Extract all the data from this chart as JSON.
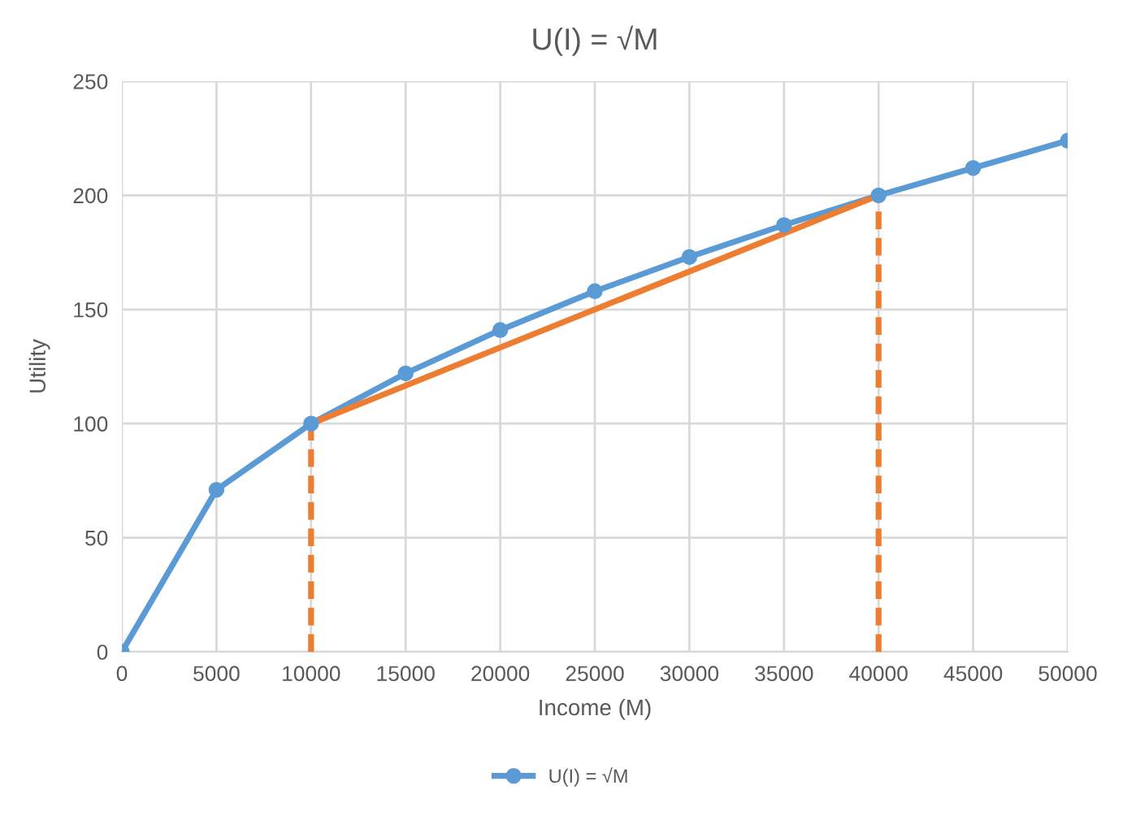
{
  "chart_data": {
    "type": "line",
    "title": "U(I) = √M",
    "xlabel": "Income (M)",
    "ylabel": "Utility",
    "xlim": [
      0,
      50000
    ],
    "xticks": [
      0,
      5000,
      10000,
      15000,
      20000,
      25000,
      30000,
      35000,
      40000,
      45000,
      50000
    ],
    "ylim": [
      0,
      250
    ],
    "yticks": [
      0,
      50,
      100,
      150,
      200,
      250
    ],
    "grid": true,
    "legend": "bottom",
    "series": [
      {
        "name": "U(I) = √M",
        "color": "#5b9bd5",
        "marker": "circle",
        "line_style": "solid",
        "x": [
          0,
          5000,
          10000,
          15000,
          20000,
          25000,
          30000,
          35000,
          40000,
          45000,
          50000
        ],
        "values": [
          0,
          71,
          100,
          122,
          141,
          158,
          173,
          187,
          200,
          212,
          224
        ]
      },
      {
        "color": "#ed7d31",
        "marker": "none",
        "line_style": "solid",
        "x": [
          10000,
          40000
        ],
        "values": [
          100,
          200
        ]
      },
      {
        "color": "#ed7d31",
        "marker": "none",
        "line_style": "dashed",
        "x": [
          10000,
          10000
        ],
        "values": [
          0,
          100
        ]
      },
      {
        "color": "#ed7d31",
        "marker": "none",
        "line_style": "dashed",
        "x": [
          40000,
          40000
        ],
        "values": [
          0,
          200
        ]
      }
    ]
  }
}
